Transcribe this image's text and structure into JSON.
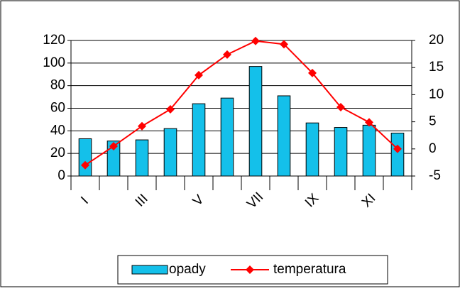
{
  "chart_data": {
    "type": "bar_line",
    "categories": [
      "I",
      null,
      "III",
      null,
      "V",
      null,
      "VII",
      null,
      "IX",
      null,
      "XI",
      null
    ],
    "series": [
      {
        "name": "opady",
        "type": "bar",
        "color": "#14c0ea",
        "values": [
          33,
          31,
          32,
          42,
          64,
          69,
          97,
          71,
          47,
          43,
          45,
          38
        ]
      },
      {
        "name": "temperatura",
        "type": "line",
        "axis": "y2",
        "color": "#ff0000",
        "values": [
          -3,
          0.5,
          4.2,
          7.3,
          13.6,
          17.4,
          19.9,
          19.3,
          14,
          7.7,
          4.9,
          0
        ]
      }
    ],
    "ylim": [
      0,
      120
    ],
    "yticks": [
      0,
      20,
      40,
      60,
      80,
      100,
      120
    ],
    "y2lim": [
      -5,
      20
    ],
    "y2ticks": [
      -5,
      0,
      5,
      10,
      15,
      20
    ],
    "grid": true,
    "legend": "bottom"
  }
}
